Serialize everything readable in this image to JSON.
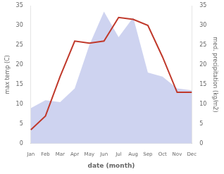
{
  "chart_data": {
    "type": "line",
    "categories": [
      "Jan",
      "Feb",
      "Mar",
      "Apr",
      "May",
      "Jun",
      "Jul",
      "Aug",
      "Sep",
      "Oct",
      "Nov",
      "Dec"
    ],
    "series": [
      {
        "type": "area",
        "color": "#b3bce8",
        "axis": "y2",
        "values": [
          9.0,
          11.0,
          10.5,
          14.0,
          25.0,
          33.5,
          27.0,
          32.0,
          18.0,
          17.0,
          14.0,
          13.5
        ]
      },
      {
        "type": "line",
        "color": "#c0392b",
        "values": [
          3.5,
          7.0,
          17.0,
          26.0,
          25.5,
          26.0,
          32.0,
          31.5,
          30.0,
          22.0,
          13.0,
          13.0
        ]
      }
    ],
    "xlabel": "date (month)",
    "ylabel": "max temp (C)",
    "y2label": "med. precipitation (kg/m2)",
    "ylim": [
      0,
      35
    ],
    "yticks": [
      0,
      5,
      10,
      15,
      20,
      25,
      30,
      35
    ],
    "y2lim": [
      0,
      35
    ],
    "y2ticks": [
      0,
      5,
      10,
      15,
      20,
      25,
      30,
      35
    ],
    "grid": false
  }
}
